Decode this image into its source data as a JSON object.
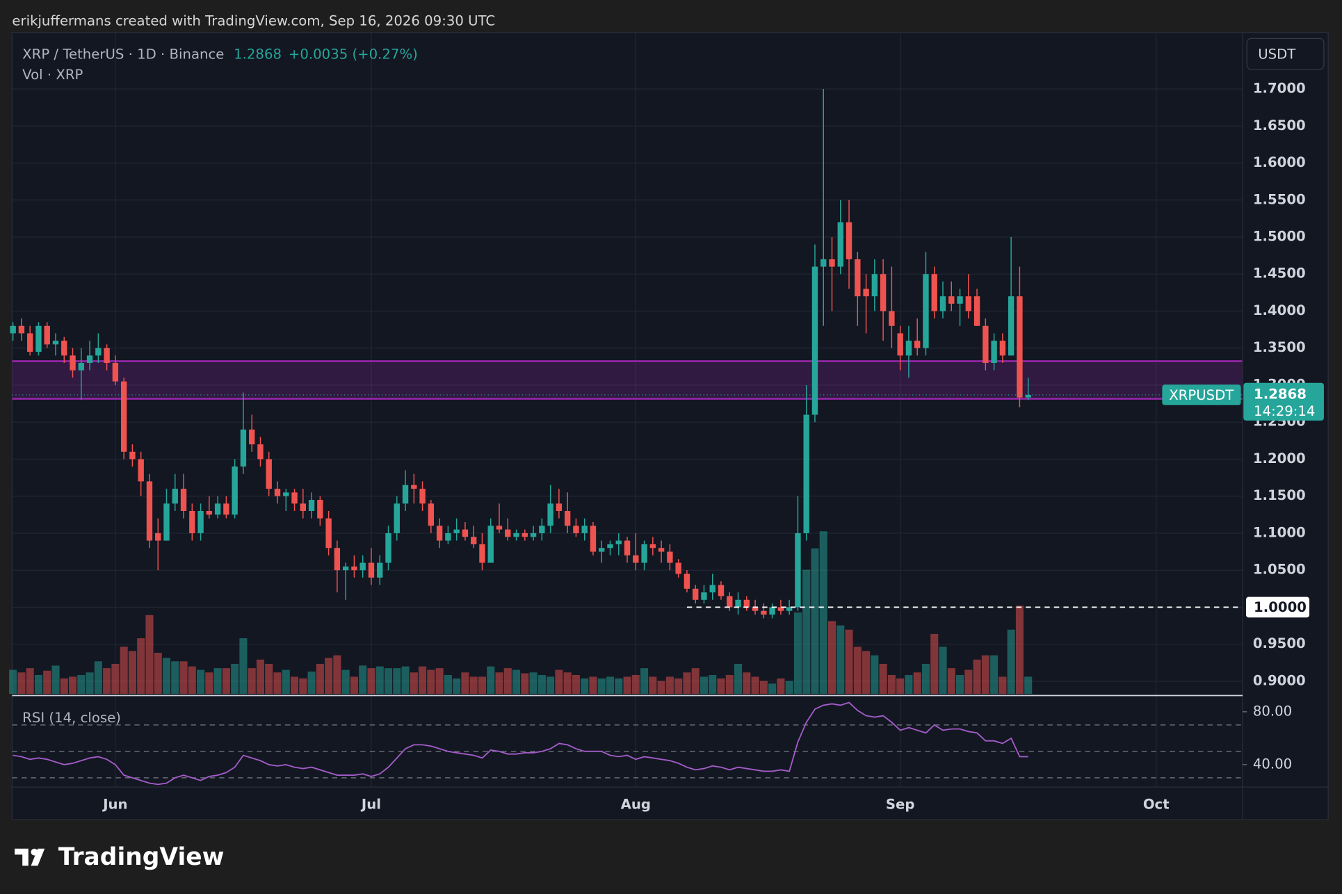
{
  "header": {
    "credit": "erikjuffermans created with TradingView.com, Sep 16, 2026 09:30 UTC",
    "brand": "TradingView"
  },
  "chart_data": {
    "type": "candlestick",
    "symbol_text": "XRP / TetherUS · 1D · Binance",
    "price_label": "1.2868",
    "change_label": "+0.0035 (+0.27%)",
    "volume_label": "Vol · XRP",
    "currency": "USDT",
    "rsi_label": "RSI (14, close)",
    "up_color": "#26a69a",
    "down_color": "#ef5350",
    "rsi_color": "#a35cc8",
    "zone_color": "#9c27b0",
    "candles": [
      [
        1.37,
        1.385,
        1.36,
        1.38
      ],
      [
        1.38,
        1.39,
        1.36,
        1.37
      ],
      [
        1.37,
        1.38,
        1.34,
        1.345
      ],
      [
        1.345,
        1.385,
        1.34,
        1.38
      ],
      [
        1.38,
        1.385,
        1.35,
        1.355
      ],
      [
        1.355,
        1.37,
        1.34,
        1.36
      ],
      [
        1.36,
        1.365,
        1.33,
        1.34
      ],
      [
        1.34,
        1.35,
        1.31,
        1.32
      ],
      [
        1.32,
        1.35,
        1.28,
        1.33
      ],
      [
        1.33,
        1.36,
        1.32,
        1.34
      ],
      [
        1.34,
        1.37,
        1.33,
        1.35
      ],
      [
        1.35,
        1.355,
        1.32,
        1.33
      ],
      [
        1.33,
        1.34,
        1.3,
        1.305
      ],
      [
        1.305,
        1.31,
        1.2,
        1.21
      ],
      [
        1.21,
        1.22,
        1.19,
        1.2
      ],
      [
        1.2,
        1.21,
        1.15,
        1.17
      ],
      [
        1.17,
        1.18,
        1.08,
        1.09
      ],
      [
        1.1,
        1.12,
        1.05,
        1.09
      ],
      [
        1.09,
        1.16,
        1.09,
        1.14
      ],
      [
        1.14,
        1.18,
        1.13,
        1.16
      ],
      [
        1.16,
        1.18,
        1.12,
        1.13
      ],
      [
        1.13,
        1.14,
        1.09,
        1.1
      ],
      [
        1.1,
        1.14,
        1.09,
        1.13
      ],
      [
        1.13,
        1.15,
        1.12,
        1.125
      ],
      [
        1.125,
        1.15,
        1.12,
        1.14
      ],
      [
        1.14,
        1.15,
        1.12,
        1.125
      ],
      [
        1.125,
        1.2,
        1.12,
        1.19
      ],
      [
        1.19,
        1.29,
        1.18,
        1.24
      ],
      [
        1.24,
        1.26,
        1.21,
        1.22
      ],
      [
        1.22,
        1.23,
        1.19,
        1.2
      ],
      [
        1.2,
        1.21,
        1.15,
        1.16
      ],
      [
        1.16,
        1.17,
        1.14,
        1.15
      ],
      [
        1.15,
        1.16,
        1.13,
        1.155
      ],
      [
        1.155,
        1.16,
        1.13,
        1.14
      ],
      [
        1.14,
        1.16,
        1.12,
        1.13
      ],
      [
        1.13,
        1.155,
        1.12,
        1.145
      ],
      [
        1.145,
        1.15,
        1.11,
        1.12
      ],
      [
        1.12,
        1.13,
        1.07,
        1.08
      ],
      [
        1.08,
        1.09,
        1.02,
        1.05
      ],
      [
        1.05,
        1.06,
        1.01,
        1.055
      ],
      [
        1.055,
        1.07,
        1.04,
        1.05
      ],
      [
        1.05,
        1.07,
        1.04,
        1.06
      ],
      [
        1.06,
        1.08,
        1.03,
        1.04
      ],
      [
        1.04,
        1.07,
        1.03,
        1.06
      ],
      [
        1.06,
        1.11,
        1.05,
        1.1
      ],
      [
        1.1,
        1.15,
        1.09,
        1.14
      ],
      [
        1.14,
        1.185,
        1.13,
        1.165
      ],
      [
        1.165,
        1.18,
        1.14,
        1.16
      ],
      [
        1.16,
        1.17,
        1.13,
        1.14
      ],
      [
        1.14,
        1.145,
        1.1,
        1.11
      ],
      [
        1.11,
        1.12,
        1.08,
        1.09
      ],
      [
        1.09,
        1.11,
        1.085,
        1.1
      ],
      [
        1.1,
        1.12,
        1.09,
        1.105
      ],
      [
        1.105,
        1.115,
        1.09,
        1.095
      ],
      [
        1.095,
        1.11,
        1.08,
        1.085
      ],
      [
        1.085,
        1.1,
        1.05,
        1.06
      ],
      [
        1.06,
        1.12,
        1.06,
        1.11
      ],
      [
        1.11,
        1.14,
        1.1,
        1.105
      ],
      [
        1.105,
        1.12,
        1.09,
        1.095
      ],
      [
        1.095,
        1.105,
        1.09,
        1.1
      ],
      [
        1.1,
        1.105,
        1.09,
        1.095
      ],
      [
        1.095,
        1.11,
        1.09,
        1.1
      ],
      [
        1.1,
        1.12,
        1.09,
        1.11
      ],
      [
        1.11,
        1.165,
        1.1,
        1.14
      ],
      [
        1.14,
        1.16,
        1.12,
        1.13
      ],
      [
        1.13,
        1.155,
        1.1,
        1.11
      ],
      [
        1.11,
        1.12,
        1.095,
        1.1
      ],
      [
        1.1,
        1.12,
        1.09,
        1.11
      ],
      [
        1.11,
        1.115,
        1.07,
        1.075
      ],
      [
        1.075,
        1.09,
        1.06,
        1.08
      ],
      [
        1.08,
        1.09,
        1.07,
        1.085
      ],
      [
        1.085,
        1.1,
        1.07,
        1.09
      ],
      [
        1.09,
        1.095,
        1.06,
        1.07
      ],
      [
        1.07,
        1.1,
        1.05,
        1.06
      ],
      [
        1.06,
        1.09,
        1.05,
        1.085
      ],
      [
        1.085,
        1.095,
        1.07,
        1.08
      ],
      [
        1.08,
        1.09,
        1.06,
        1.075
      ],
      [
        1.075,
        1.085,
        1.05,
        1.06
      ],
      [
        1.06,
        1.065,
        1.04,
        1.045
      ],
      [
        1.045,
        1.05,
        1.02,
        1.025
      ],
      [
        1.025,
        1.03,
        1.005,
        1.01
      ],
      [
        1.01,
        1.03,
        1.005,
        1.02
      ],
      [
        1.02,
        1.045,
        1.01,
        1.03
      ],
      [
        1.03,
        1.035,
        1.01,
        1.015
      ],
      [
        1.015,
        1.02,
        0.995,
        1.0
      ],
      [
        1.0,
        1.02,
        0.99,
        1.01
      ],
      [
        1.01,
        1.015,
        0.995,
        1.0
      ],
      [
        1.0,
        1.01,
        0.99,
        0.995
      ],
      [
        0.995,
        1.005,
        0.985,
        0.99
      ],
      [
        0.99,
        1.005,
        0.985,
        1.0
      ],
      [
        1.0,
        1.01,
        0.99,
        0.995
      ],
      [
        0.995,
        1.01,
        0.99,
        1.0
      ],
      [
        1.0,
        1.15,
        0.995,
        1.1
      ],
      [
        1.1,
        1.3,
        1.09,
        1.26
      ],
      [
        1.26,
        1.49,
        1.25,
        1.46
      ],
      [
        1.46,
        1.7,
        1.38,
        1.47
      ],
      [
        1.47,
        1.5,
        1.4,
        1.46
      ],
      [
        1.46,
        1.55,
        1.45,
        1.52
      ],
      [
        1.52,
        1.55,
        1.43,
        1.47
      ],
      [
        1.47,
        1.48,
        1.38,
        1.42
      ],
      [
        1.43,
        1.45,
        1.37,
        1.42
      ],
      [
        1.42,
        1.47,
        1.4,
        1.45
      ],
      [
        1.45,
        1.47,
        1.36,
        1.4
      ],
      [
        1.4,
        1.46,
        1.35,
        1.38
      ],
      [
        1.37,
        1.38,
        1.32,
        1.34
      ],
      [
        1.34,
        1.38,
        1.31,
        1.36
      ],
      [
        1.36,
        1.39,
        1.34,
        1.35
      ],
      [
        1.35,
        1.48,
        1.34,
        1.45
      ],
      [
        1.45,
        1.46,
        1.39,
        1.4
      ],
      [
        1.4,
        1.44,
        1.39,
        1.42
      ],
      [
        1.42,
        1.44,
        1.4,
        1.41
      ],
      [
        1.41,
        1.43,
        1.38,
        1.42
      ],
      [
        1.42,
        1.45,
        1.39,
        1.4
      ],
      [
        1.42,
        1.43,
        1.38,
        1.38
      ],
      [
        1.38,
        1.39,
        1.32,
        1.33
      ],
      [
        1.33,
        1.37,
        1.32,
        1.36
      ],
      [
        1.36,
        1.37,
        1.33,
        1.34
      ],
      [
        1.34,
        1.5,
        1.34,
        1.42
      ],
      [
        1.42,
        1.46,
        1.27,
        1.2833
      ],
      [
        1.2833,
        1.31,
        1.28,
        1.2868
      ]
    ],
    "volume": [
      28,
      25,
      30,
      22,
      27,
      33,
      18,
      20,
      22,
      25,
      38,
      30,
      35,
      55,
      50,
      65,
      92,
      48,
      42,
      38,
      38,
      32,
      28,
      25,
      30,
      30,
      35,
      65,
      30,
      40,
      35,
      25,
      28,
      20,
      18,
      26,
      35,
      42,
      45,
      28,
      20,
      33,
      30,
      32,
      30,
      30,
      32,
      25,
      32,
      28,
      30,
      22,
      18,
      25,
      20,
      20,
      32,
      25,
      30,
      28,
      24,
      25,
      22,
      20,
      28,
      25,
      22,
      18,
      20,
      18,
      20,
      18,
      20,
      22,
      30,
      20,
      15,
      20,
      18,
      25,
      30,
      20,
      22,
      18,
      22,
      35,
      25,
      20,
      15,
      12,
      18,
      15,
      95,
      145,
      170,
      190,
      85,
      80,
      75,
      55,
      50,
      45,
      35,
      22,
      18,
      22,
      25,
      35,
      70,
      55,
      30,
      22,
      28,
      40,
      45,
      45,
      20,
      75,
      103,
      20
    ],
    "volume_lim": [
      0,
      200
    ],
    "rsi": [
      47,
      46,
      44,
      45,
      44,
      42,
      40,
      41,
      43,
      45,
      46,
      44,
      40,
      32,
      30,
      28,
      26,
      25,
      26,
      30,
      32,
      30,
      28,
      31,
      32,
      34,
      38,
      47,
      45,
      43,
      40,
      39,
      40,
      38,
      37,
      38,
      36,
      34,
      32,
      32,
      32,
      33,
      31,
      33,
      38,
      45,
      52,
      55,
      55,
      54,
      52,
      50,
      49,
      48,
      47,
      45,
      51,
      50,
      48,
      48,
      49,
      49,
      50,
      52,
      56,
      55,
      52,
      50,
      50,
      50,
      47,
      46,
      47,
      44,
      46,
      45,
      44,
      43,
      41,
      38,
      36,
      37,
      39,
      38,
      36,
      38,
      37,
      36,
      35,
      35,
      36,
      35,
      57,
      72,
      82,
      85,
      86,
      85,
      87,
      81,
      77,
      76,
      77,
      72,
      66,
      68,
      66,
      64,
      70,
      66,
      67,
      67,
      65,
      64,
      58,
      58,
      56,
      60,
      46,
      46
    ],
    "rsi_lim": [
      23,
      91
    ],
    "rsi_ticks": [
      {
        "value": 80,
        "label": "80.00"
      },
      {
        "value": 40,
        "label": "40.00"
      }
    ],
    "rsi_levels": [
      70,
      50,
      30
    ],
    "ylim": [
      0.883,
      1.774
    ],
    "yticks": [
      {
        "value": 0.9,
        "label": "0.9000"
      },
      {
        "value": 0.95,
        "label": "0.9500"
      },
      {
        "value": 1.0,
        "label": "1.0000"
      },
      {
        "value": 1.05,
        "label": "1.0500"
      },
      {
        "value": 1.1,
        "label": "1.1000"
      },
      {
        "value": 1.15,
        "label": "1.1500"
      },
      {
        "value": 1.2,
        "label": "1.2000"
      },
      {
        "value": 1.25,
        "label": "1.2500"
      },
      {
        "value": 1.3,
        "label": "1.3000"
      },
      {
        "value": 1.35,
        "label": "1.3500"
      },
      {
        "value": 1.4,
        "label": "1.4000"
      },
      {
        "value": 1.45,
        "label": "1.4500"
      },
      {
        "value": 1.5,
        "label": "1.5000"
      },
      {
        "value": 1.55,
        "label": "1.5500"
      },
      {
        "value": 1.6,
        "label": "1.6000"
      },
      {
        "value": 1.65,
        "label": "1.6500"
      },
      {
        "value": 1.7,
        "label": "1.7000"
      }
    ],
    "xticks": [
      {
        "value": 12,
        "label": "Jun"
      },
      {
        "value": 42,
        "label": "Jul"
      },
      {
        "value": 73,
        "label": "Aug"
      },
      {
        "value": 104,
        "label": "Sep"
      },
      {
        "value": 134,
        "label": "Oct"
      }
    ],
    "grid": true,
    "zone": {
      "from": 1.2815,
      "to": 1.3324
    },
    "level": {
      "value": 1.0,
      "label": "1.0000",
      "from_index": 79
    },
    "last": {
      "value": 1.2868,
      "symbol": "XRPUSDT",
      "label": "1.2868",
      "countdown": "14:29:14"
    }
  }
}
